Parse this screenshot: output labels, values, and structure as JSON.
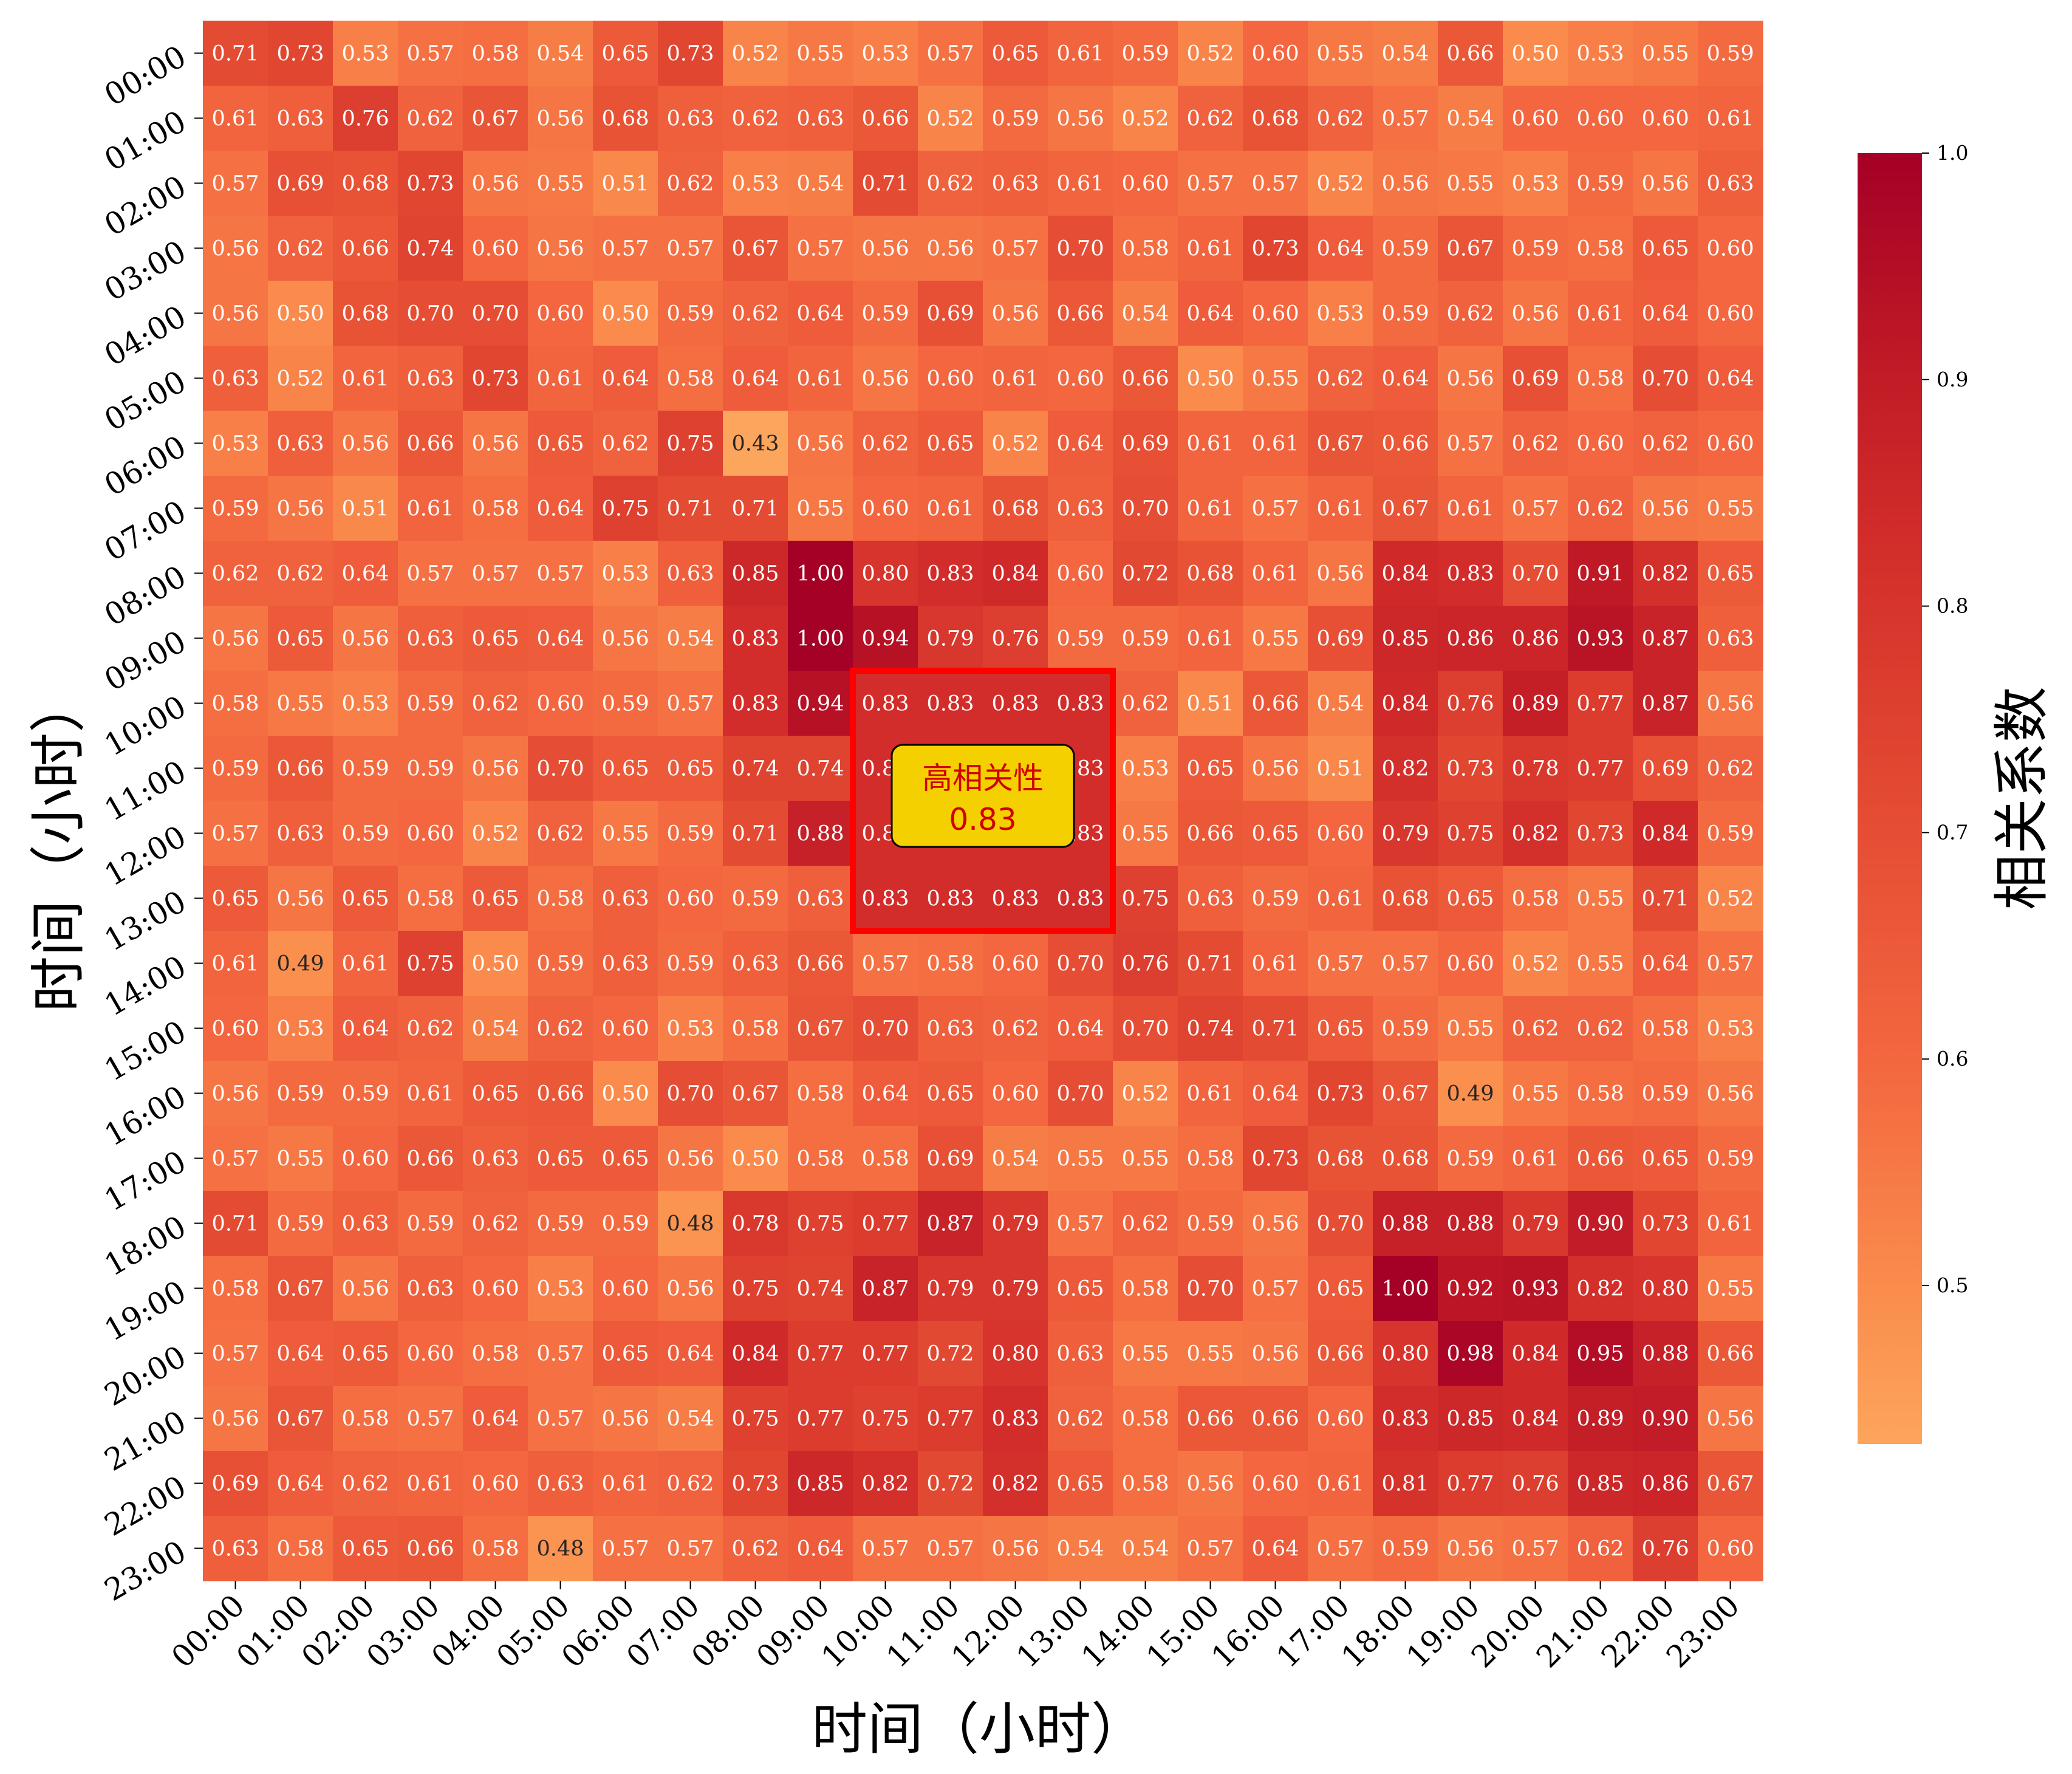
{
  "chart_data": {
    "type": "heatmap",
    "xlabel": "时间（小时）",
    "ylabel": "时间（小时）",
    "colorbar_label": "相关系数",
    "colorbar_ticks": [
      "0.5",
      "0.6",
      "0.7",
      "0.8",
      "0.9",
      "1.0"
    ],
    "colorbar_range": [
      0.43,
      1.0
    ],
    "colormap": [
      "#fca55d",
      "#f3663f",
      "#e0402e",
      "#c41a28",
      "#a50026"
    ],
    "x_categories": [
      "00:00",
      "01:00",
      "02:00",
      "03:00",
      "04:00",
      "05:00",
      "06:00",
      "07:00",
      "08:00",
      "09:00",
      "10:00",
      "11:00",
      "12:00",
      "13:00",
      "14:00",
      "15:00",
      "16:00",
      "17:00",
      "18:00",
      "19:00",
      "20:00",
      "21:00",
      "22:00",
      "23:00"
    ],
    "y_categories": [
      "00:00",
      "01:00",
      "02:00",
      "03:00",
      "04:00",
      "05:00",
      "06:00",
      "07:00",
      "08:00",
      "09:00",
      "10:00",
      "11:00",
      "12:00",
      "13:00",
      "14:00",
      "15:00",
      "16:00",
      "17:00",
      "18:00",
      "19:00",
      "20:00",
      "21:00",
      "22:00",
      "23:00"
    ],
    "values": [
      [
        0.71,
        0.73,
        0.53,
        0.57,
        0.58,
        0.54,
        0.65,
        0.73,
        0.52,
        0.55,
        0.53,
        0.57,
        0.65,
        0.61,
        0.59,
        0.52,
        0.6,
        0.55,
        0.54,
        0.66,
        0.5,
        0.53,
        0.55,
        0.59
      ],
      [
        0.61,
        0.63,
        0.76,
        0.62,
        0.67,
        0.56,
        0.68,
        0.63,
        0.62,
        0.63,
        0.66,
        0.52,
        0.59,
        0.56,
        0.52,
        0.62,
        0.68,
        0.62,
        0.57,
        0.54,
        0.6,
        0.6,
        0.6,
        0.61
      ],
      [
        0.57,
        0.69,
        0.68,
        0.73,
        0.56,
        0.55,
        0.51,
        0.62,
        0.53,
        0.54,
        0.71,
        0.62,
        0.63,
        0.61,
        0.6,
        0.57,
        0.57,
        0.52,
        0.56,
        0.55,
        0.53,
        0.59,
        0.56,
        0.63
      ],
      [
        0.56,
        0.62,
        0.66,
        0.74,
        0.6,
        0.56,
        0.57,
        0.57,
        0.67,
        0.57,
        0.56,
        0.56,
        0.57,
        0.7,
        0.58,
        0.61,
        0.73,
        0.64,
        0.59,
        0.67,
        0.59,
        0.58,
        0.65,
        0.6
      ],
      [
        0.56,
        0.5,
        0.68,
        0.7,
        0.7,
        0.6,
        0.5,
        0.59,
        0.62,
        0.64,
        0.59,
        0.69,
        0.56,
        0.66,
        0.54,
        0.64,
        0.6,
        0.53,
        0.59,
        0.62,
        0.56,
        0.61,
        0.64,
        0.6
      ],
      [
        0.63,
        0.52,
        0.61,
        0.63,
        0.73,
        0.61,
        0.64,
        0.58,
        0.64,
        0.61,
        0.56,
        0.6,
        0.61,
        0.6,
        0.66,
        0.5,
        0.55,
        0.62,
        0.64,
        0.56,
        0.69,
        0.58,
        0.7,
        0.64
      ],
      [
        0.53,
        0.63,
        0.56,
        0.66,
        0.56,
        0.65,
        0.62,
        0.75,
        0.43,
        0.56,
        0.62,
        0.65,
        0.52,
        0.64,
        0.69,
        0.61,
        0.61,
        0.67,
        0.66,
        0.57,
        0.62,
        0.6,
        0.62,
        0.6
      ],
      [
        0.59,
        0.56,
        0.51,
        0.61,
        0.58,
        0.64,
        0.75,
        0.71,
        0.71,
        0.55,
        0.6,
        0.61,
        0.68,
        0.63,
        0.7,
        0.61,
        0.57,
        0.61,
        0.67,
        0.61,
        0.57,
        0.62,
        0.56,
        0.55
      ],
      [
        0.62,
        0.62,
        0.64,
        0.57,
        0.57,
        0.57,
        0.53,
        0.63,
        0.85,
        1.0,
        0.8,
        0.83,
        0.84,
        0.6,
        0.72,
        0.68,
        0.61,
        0.56,
        0.84,
        0.83,
        0.7,
        0.91,
        0.82,
        0.65
      ],
      [
        0.56,
        0.65,
        0.56,
        0.63,
        0.65,
        0.64,
        0.56,
        0.54,
        0.83,
        1.0,
        0.94,
        0.79,
        0.76,
        0.59,
        0.59,
        0.61,
        0.55,
        0.69,
        0.85,
        0.86,
        0.86,
        0.93,
        0.87,
        0.63
      ],
      [
        0.58,
        0.55,
        0.53,
        0.59,
        0.62,
        0.6,
        0.59,
        0.57,
        0.83,
        0.94,
        0.83,
        0.83,
        0.83,
        0.83,
        0.62,
        0.51,
        0.66,
        0.54,
        0.84,
        0.76,
        0.89,
        0.77,
        0.87,
        0.56
      ],
      [
        0.59,
        0.66,
        0.59,
        0.59,
        0.56,
        0.7,
        0.65,
        0.65,
        0.74,
        0.74,
        0.83,
        0.83,
        0.83,
        0.83,
        0.53,
        0.65,
        0.56,
        0.51,
        0.82,
        0.73,
        0.78,
        0.77,
        0.69,
        0.62
      ],
      [
        0.57,
        0.63,
        0.59,
        0.6,
        0.52,
        0.62,
        0.55,
        0.59,
        0.71,
        0.88,
        0.83,
        0.83,
        0.83,
        0.83,
        0.55,
        0.66,
        0.65,
        0.6,
        0.79,
        0.75,
        0.82,
        0.73,
        0.84,
        0.59
      ],
      [
        0.65,
        0.56,
        0.65,
        0.58,
        0.65,
        0.58,
        0.63,
        0.6,
        0.59,
        0.63,
        0.83,
        0.83,
        0.83,
        0.83,
        0.75,
        0.63,
        0.59,
        0.61,
        0.68,
        0.65,
        0.58,
        0.55,
        0.71,
        0.52
      ],
      [
        0.61,
        0.49,
        0.61,
        0.75,
        0.5,
        0.59,
        0.63,
        0.59,
        0.63,
        0.66,
        0.57,
        0.58,
        0.6,
        0.7,
        0.76,
        0.71,
        0.61,
        0.57,
        0.57,
        0.6,
        0.52,
        0.55,
        0.64,
        0.57
      ],
      [
        0.6,
        0.53,
        0.64,
        0.62,
        0.54,
        0.62,
        0.6,
        0.53,
        0.58,
        0.67,
        0.7,
        0.63,
        0.62,
        0.64,
        0.7,
        0.74,
        0.71,
        0.65,
        0.59,
        0.55,
        0.62,
        0.62,
        0.58,
        0.53
      ],
      [
        0.56,
        0.59,
        0.59,
        0.61,
        0.65,
        0.66,
        0.5,
        0.7,
        0.67,
        0.58,
        0.64,
        0.65,
        0.6,
        0.7,
        0.52,
        0.61,
        0.64,
        0.73,
        0.67,
        0.49,
        0.55,
        0.58,
        0.59,
        0.56
      ],
      [
        0.57,
        0.55,
        0.6,
        0.66,
        0.63,
        0.65,
        0.65,
        0.56,
        0.5,
        0.58,
        0.58,
        0.69,
        0.54,
        0.55,
        0.55,
        0.58,
        0.73,
        0.68,
        0.68,
        0.59,
        0.61,
        0.66,
        0.65,
        0.59
      ],
      [
        0.71,
        0.59,
        0.63,
        0.59,
        0.62,
        0.59,
        0.59,
        0.48,
        0.78,
        0.75,
        0.77,
        0.87,
        0.79,
        0.57,
        0.62,
        0.59,
        0.56,
        0.7,
        0.88,
        0.88,
        0.79,
        0.9,
        0.73,
        0.61
      ],
      [
        0.58,
        0.67,
        0.56,
        0.63,
        0.6,
        0.53,
        0.6,
        0.56,
        0.75,
        0.74,
        0.87,
        0.79,
        0.79,
        0.65,
        0.58,
        0.7,
        0.57,
        0.65,
        1.0,
        0.92,
        0.93,
        0.82,
        0.8,
        0.55
      ],
      [
        0.57,
        0.64,
        0.65,
        0.6,
        0.58,
        0.57,
        0.65,
        0.64,
        0.84,
        0.77,
        0.77,
        0.72,
        0.8,
        0.63,
        0.55,
        0.55,
        0.56,
        0.66,
        0.8,
        0.98,
        0.84,
        0.95,
        0.88,
        0.66
      ],
      [
        0.56,
        0.67,
        0.58,
        0.57,
        0.64,
        0.57,
        0.56,
        0.54,
        0.75,
        0.77,
        0.75,
        0.77,
        0.83,
        0.62,
        0.58,
        0.66,
        0.66,
        0.6,
        0.83,
        0.85,
        0.84,
        0.89,
        0.9,
        0.56
      ],
      [
        0.69,
        0.64,
        0.62,
        0.61,
        0.6,
        0.63,
        0.61,
        0.62,
        0.73,
        0.85,
        0.82,
        0.72,
        0.82,
        0.65,
        0.58,
        0.56,
        0.6,
        0.61,
        0.81,
        0.77,
        0.76,
        0.85,
        0.86,
        0.67
      ],
      [
        0.63,
        0.58,
        0.65,
        0.66,
        0.58,
        0.48,
        0.57,
        0.57,
        0.62,
        0.64,
        0.57,
        0.57,
        0.56,
        0.54,
        0.54,
        0.57,
        0.64,
        0.57,
        0.59,
        0.56,
        0.57,
        0.62,
        0.76,
        0.6
      ]
    ],
    "highlight": {
      "x_range": [
        "10:00",
        "13:00"
      ],
      "y_range": [
        "10:00",
        "13:00"
      ],
      "box_color": "#ff0000",
      "label_line1": "高相关性",
      "label_line2": "0.83",
      "label_bg": "#f5d000",
      "label_color": "#d00000"
    }
  }
}
